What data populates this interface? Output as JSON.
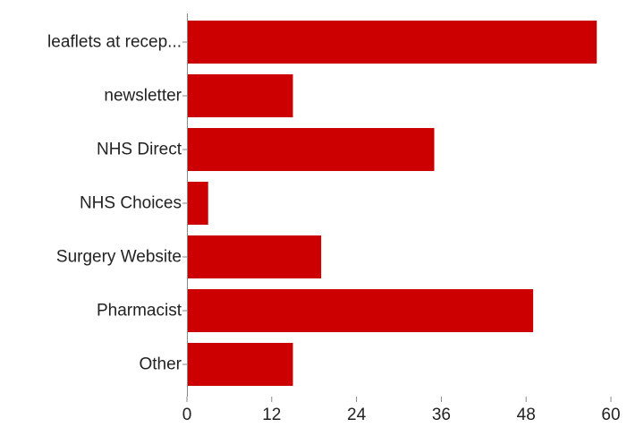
{
  "chart_data": {
    "type": "bar",
    "orientation": "horizontal",
    "categories": [
      "leaflets at recep...",
      "newsletter",
      "NHS Direct",
      "NHS Choices",
      "Surgery Website",
      "Pharmacist",
      "Other"
    ],
    "values": [
      58,
      15,
      35,
      3,
      19,
      49,
      15
    ],
    "xlim": [
      0,
      60
    ],
    "xticks": [
      "0",
      "12",
      "24",
      "36",
      "48",
      "60"
    ],
    "xtick_values": [
      0,
      12,
      24,
      36,
      48,
      60
    ],
    "title": "",
    "xlabel": "",
    "ylabel": "",
    "grid": false,
    "legend": "none",
    "colors": {
      "bar": "#cc0000",
      "axis": "#888888",
      "text": "#222222"
    }
  }
}
